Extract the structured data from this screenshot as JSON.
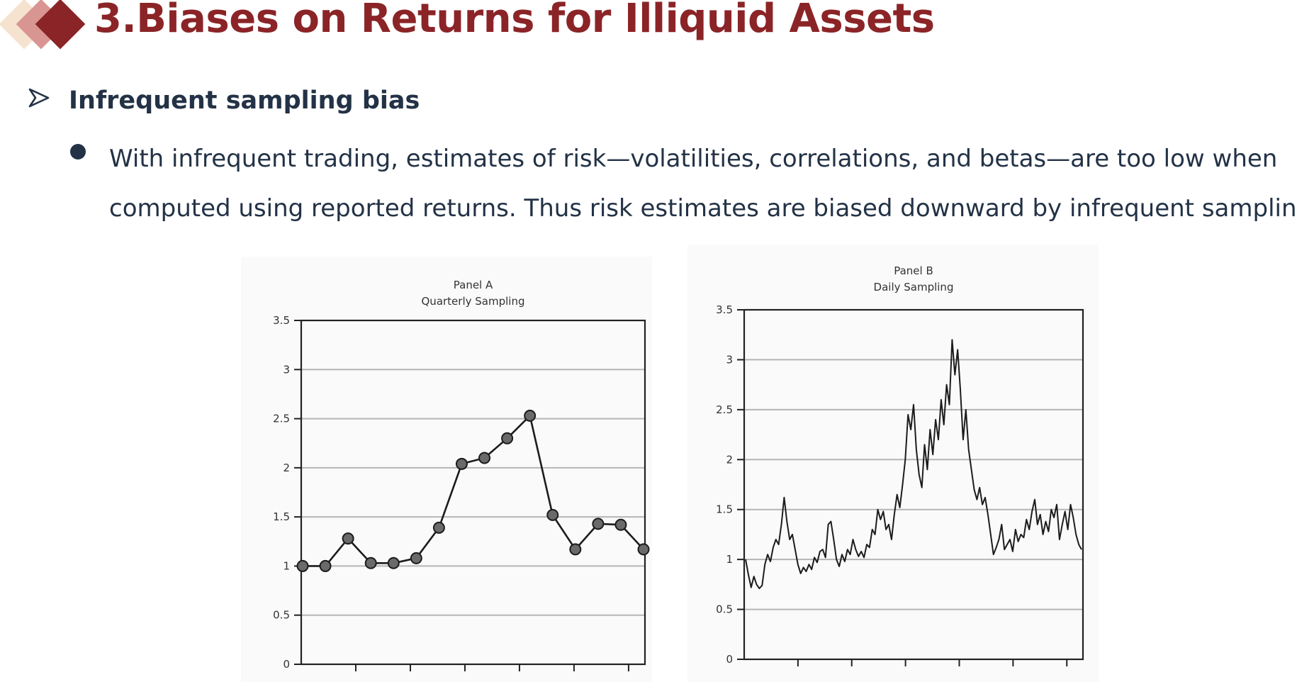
{
  "slide": {
    "title": "3.Biases on Returns for Illiquid Assets",
    "colors": {
      "title": "#8b2427",
      "body": "#233246"
    },
    "bullets": {
      "level1_icon": "arrow-bullet-icon",
      "heading": "Infrequent sampling bias",
      "level2_icon": "dot-bullet-icon",
      "line1": "With infrequent trading, estimates of risk—volatilities, correlations, and betas—are too low when",
      "line2": "computed using reported returns. Thus risk estimates are biased downward by infrequent sampling"
    }
  },
  "chart_data": [
    {
      "type": "line",
      "title": "Panel A",
      "subtitle": "Quarterly Sampling",
      "ylim": [
        0,
        3.5
      ],
      "yticks": [
        "0",
        "0.5",
        "1",
        "1.5",
        "2",
        "2.5",
        "3",
        "3.5"
      ],
      "grid": true,
      "markers": true,
      "values": [
        1.0,
        1.0,
        1.28,
        1.03,
        1.03,
        1.08,
        1.39,
        2.04,
        2.1,
        2.3,
        2.53,
        1.52,
        1.17,
        1.43,
        1.42,
        1.17
      ]
    },
    {
      "type": "line",
      "title": "Panel B",
      "subtitle": "Daily Sampling",
      "ylim": [
        0,
        3.5
      ],
      "yticks": [
        "0",
        "0.5",
        "1",
        "1.5",
        "2",
        "2.5",
        "3",
        "3.5"
      ],
      "grid": true,
      "markers": false,
      "values": [
        1.0,
        0.85,
        0.72,
        0.83,
        0.75,
        0.71,
        0.74,
        0.95,
        1.05,
        0.98,
        1.12,
        1.2,
        1.15,
        1.35,
        1.62,
        1.38,
        1.2,
        1.25,
        1.1,
        0.95,
        0.86,
        0.92,
        0.88,
        0.95,
        0.9,
        1.02,
        0.97,
        1.08,
        1.1,
        1.02,
        1.35,
        1.38,
        1.2,
        1.0,
        0.93,
        1.05,
        0.98,
        1.1,
        1.05,
        1.2,
        1.1,
        1.03,
        1.08,
        1.02,
        1.15,
        1.12,
        1.3,
        1.25,
        1.5,
        1.4,
        1.48,
        1.3,
        1.35,
        1.2,
        1.45,
        1.65,
        1.52,
        1.75,
        2.0,
        2.45,
        2.3,
        2.55,
        2.1,
        1.85,
        1.72,
        2.15,
        1.9,
        2.3,
        2.05,
        2.4,
        2.2,
        2.6,
        2.35,
        2.75,
        2.55,
        3.2,
        2.85,
        3.1,
        2.7,
        2.2,
        2.5,
        2.1,
        1.9,
        1.7,
        1.6,
        1.72,
        1.55,
        1.62,
        1.45,
        1.25,
        1.05,
        1.12,
        1.2,
        1.35,
        1.1,
        1.15,
        1.2,
        1.08,
        1.3,
        1.18,
        1.25,
        1.22,
        1.4,
        1.3,
        1.48,
        1.6,
        1.35,
        1.45,
        1.25,
        1.38,
        1.28,
        1.5,
        1.42,
        1.55,
        1.2,
        1.35,
        1.48,
        1.3,
        1.55,
        1.42,
        1.25,
        1.15,
        1.1
      ]
    }
  ]
}
